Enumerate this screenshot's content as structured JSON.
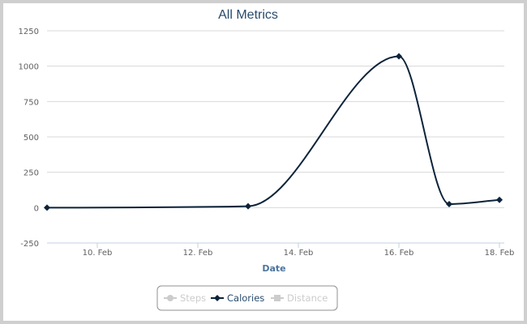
{
  "chart_data": {
    "type": "line",
    "title": "All Metrics",
    "xlabel": "Date",
    "ylabel": "",
    "ylim": [
      -250,
      1250
    ],
    "yticks": [
      -250,
      0,
      250,
      500,
      750,
      1000,
      1250
    ],
    "xlim": [
      "2015-02-09",
      "2015-02-18"
    ],
    "xticks": [
      {
        "date": "2015-02-10",
        "label": "10. Feb"
      },
      {
        "date": "2015-02-12",
        "label": "12. Feb"
      },
      {
        "date": "2015-02-14",
        "label": "14. Feb"
      },
      {
        "date": "2015-02-16",
        "label": "16. Feb"
      },
      {
        "date": "2015-02-18",
        "label": "18. Feb"
      }
    ],
    "grid": true,
    "legend_position": "bottom-center",
    "series": [
      {
        "name": "Steps",
        "visible": false,
        "color": "#cccccc",
        "marker": "circle",
        "points": []
      },
      {
        "name": "Calories",
        "visible": true,
        "color": "#0d233a",
        "marker": "diamond",
        "points": [
          {
            "x": "2015-02-09",
            "y": 0
          },
          {
            "x": "2015-02-13",
            "y": 10
          },
          {
            "x": "2015-02-16",
            "y": 1070
          },
          {
            "x": "2015-02-17",
            "y": 25
          },
          {
            "x": "2015-02-18",
            "y": 55
          }
        ]
      },
      {
        "name": "Distance",
        "visible": false,
        "color": "#cccccc",
        "marker": "square",
        "points": []
      }
    ]
  }
}
